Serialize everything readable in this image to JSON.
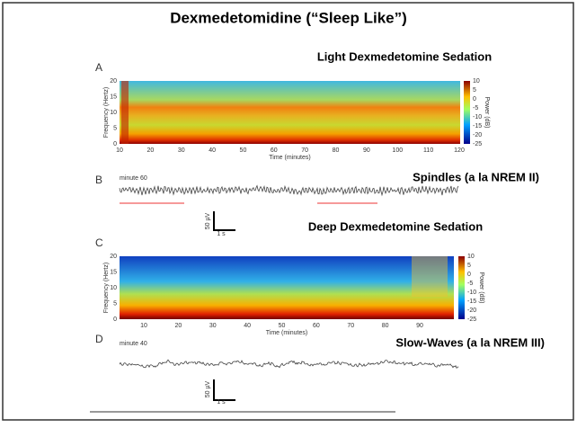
{
  "title": "Dexmedetomidine (“Sleep Like”)",
  "panel_a": {
    "heading": "Light Dexmedetomine Sedation",
    "label": "A",
    "y_label": "Frequency (Hertz)",
    "yticks": [
      0,
      5,
      10,
      15,
      20
    ],
    "x_label": "Time (minutes)",
    "xticks": [
      10,
      20,
      30,
      40,
      50,
      60,
      70,
      80,
      90,
      100,
      110,
      120
    ],
    "colorbar_label": "Power (dB)",
    "colorbar_ticks": [
      10,
      5,
      0,
      -5,
      -10,
      -15,
      -20,
      -25
    ]
  },
  "panel_b": {
    "label": "B",
    "note": "minute 60",
    "heading": "Spindles (a la NREM II)",
    "scale_y": "50 µV",
    "scale_x": "1 s"
  },
  "panel_c": {
    "heading": "Deep Dexmedetomine Sedation",
    "label": "C",
    "y_label": "Frequency (Hertz)",
    "yticks": [
      0,
      5,
      10,
      15,
      20
    ],
    "x_label": "Time (minutes)",
    "xticks": [
      10,
      20,
      30,
      40,
      50,
      60,
      70,
      80,
      90
    ],
    "colorbar_label": "Power (dB)",
    "colorbar_ticks": [
      10,
      5,
      0,
      -5,
      -10,
      -15,
      -20,
      -25
    ]
  },
  "panel_d": {
    "label": "D",
    "note": "minute 40",
    "heading": "Slow-Waves (a la NREM III)",
    "scale_y": "50 µV",
    "scale_x": "1 s"
  }
}
